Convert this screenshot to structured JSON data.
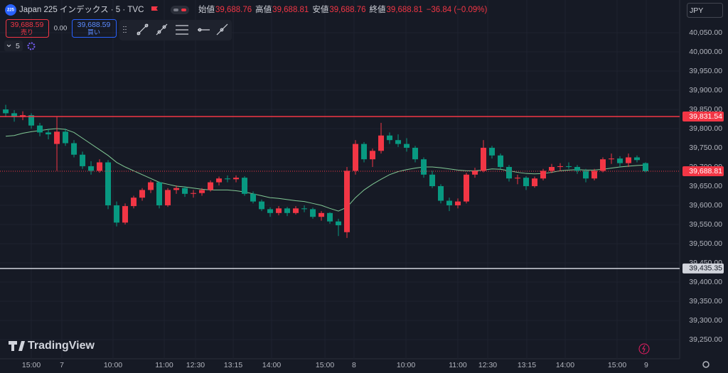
{
  "header": {
    "icon": "225",
    "symbol": "Japan 225 インデックス · 5 · TVC",
    "ohlc": [
      {
        "label": "始値",
        "value": "39,688.76"
      },
      {
        "label": "高値",
        "value": "39,688.81"
      },
      {
        "label": "安値",
        "value": "39,688.76"
      },
      {
        "label": "終値",
        "value": "39,688.81"
      }
    ],
    "change": "−36.84 (−0.09%)"
  },
  "trade": {
    "sell_price": "39,688.59",
    "sell_label": "売り",
    "spread": "0.00",
    "buy_price": "39,688.59",
    "buy_label": "買い"
  },
  "interval": "5",
  "currency": "JPY",
  "brand": "TradingView",
  "chart_data": {
    "type": "candlestick",
    "up_color": "#f23645",
    "down_color": "#089981",
    "grid": true,
    "ylim": [
      39200,
      40135.2
    ],
    "xlim": [
      -0.67,
      79
    ],
    "yticks": [
      {
        "value": 40050,
        "label": "40,050.00"
      },
      {
        "value": 40000,
        "label": "40,000.00"
      },
      {
        "value": 39950,
        "label": "39,950.00"
      },
      {
        "value": 39900,
        "label": "39,900.00"
      },
      {
        "value": 39850,
        "label": "39,850.00"
      },
      {
        "value": 39800,
        "label": "39,800.00"
      },
      {
        "value": 39750,
        "label": "39,750.00"
      },
      {
        "value": 39700,
        "label": "39,700.00"
      },
      {
        "value": 39650,
        "label": "39,650.00"
      },
      {
        "value": 39600,
        "label": "39,600.00"
      },
      {
        "value": 39550,
        "label": "39,550.00"
      },
      {
        "value": 39500,
        "label": "39,500.00"
      },
      {
        "value": 39450,
        "label": "39,450.00"
      },
      {
        "value": 39400,
        "label": "39,400.00"
      },
      {
        "value": 39350,
        "label": "39,350.00"
      },
      {
        "value": 39300,
        "label": "39,300.00"
      },
      {
        "value": 39250,
        "label": "39,250.00"
      }
    ],
    "xticks": [
      {
        "value": 3,
        "label": "15:00"
      },
      {
        "value": 6.58,
        "label": "7"
      },
      {
        "value": 12.58,
        "label": "10:00"
      },
      {
        "value": 18.58,
        "label": "11:00"
      },
      {
        "value": 22.25,
        "label": "12:30"
      },
      {
        "value": 26.67,
        "label": "13:15"
      },
      {
        "value": 31.17,
        "label": "14:00"
      },
      {
        "value": 37.42,
        "label": "15:00"
      },
      {
        "value": 40.83,
        "label": "8"
      },
      {
        "value": 46.92,
        "label": "10:00"
      },
      {
        "value": 53,
        "label": "11:00"
      },
      {
        "value": 56.5,
        "label": "12:30"
      },
      {
        "value": 61.08,
        "label": "13:15"
      },
      {
        "value": 65.58,
        "label": "14:00"
      },
      {
        "value": 71.67,
        "label": "15:00"
      },
      {
        "value": 75.08,
        "label": "9"
      }
    ],
    "hlines": [
      {
        "value": 39831.54,
        "label": "39,831.54",
        "color": "#f23645",
        "style": "solid"
      },
      {
        "value": 39688.81,
        "label": "39,688.81",
        "color": "#f23645",
        "style": "dotted"
      },
      {
        "value": 39435.35,
        "label": "39,435.35",
        "color": "#d1d4dc",
        "style": "solid"
      }
    ],
    "ohlc": [
      [
        39850,
        39862,
        39830,
        39840
      ],
      [
        39840,
        39848,
        39818,
        39830
      ],
      [
        39830,
        39845,
        39822,
        39835
      ],
      [
        39835,
        39840,
        39800,
        39808
      ],
      [
        39808,
        39815,
        39780,
        39790
      ],
      [
        39790,
        39800,
        39772,
        39785
      ],
      [
        39760,
        39832,
        39690,
        39792
      ],
      [
        39792,
        39800,
        39755,
        39762
      ],
      [
        39762,
        39770,
        39725,
        39732
      ],
      [
        39732,
        39740,
        39695,
        39702
      ],
      [
        39702,
        39715,
        39680,
        39690
      ],
      [
        39690,
        39720,
        39685,
        39712
      ],
      [
        39712,
        39718,
        39590,
        39600
      ],
      [
        39600,
        39610,
        39545,
        39555
      ],
      [
        39555,
        39605,
        39550,
        39598
      ],
      [
        39598,
        39625,
        39592,
        39620
      ],
      [
        39620,
        39645,
        39612,
        39640
      ],
      [
        39640,
        39665,
        39632,
        39660
      ],
      [
        39660,
        39662,
        39592,
        39600
      ],
      [
        39600,
        39645,
        39596,
        39640
      ],
      [
        39640,
        39652,
        39630,
        39645
      ],
      [
        39645,
        39650,
        39622,
        39630
      ],
      [
        39630,
        39640,
        39620,
        39632
      ],
      [
        39632,
        39645,
        39625,
        39640
      ],
      [
        39640,
        39665,
        39636,
        39660
      ],
      [
        39660,
        39675,
        39652,
        39670
      ],
      [
        39670,
        39678,
        39660,
        39668
      ],
      [
        39668,
        39678,
        39660,
        39672
      ],
      [
        39672,
        39676,
        39625,
        39630
      ],
      [
        39630,
        39636,
        39605,
        39610
      ],
      [
        39610,
        39615,
        39585,
        39590
      ],
      [
        39590,
        39595,
        39570,
        39580
      ],
      [
        39580,
        39598,
        39574,
        39592
      ],
      [
        39592,
        39596,
        39572,
        39580
      ],
      [
        39580,
        39598,
        39576,
        39592
      ],
      [
        39592,
        39600,
        39582,
        39590
      ],
      [
        39590,
        39594,
        39565,
        39570
      ],
      [
        39570,
        39585,
        39560,
        39580
      ],
      [
        39580,
        39582,
        39552,
        39558
      ],
      [
        39558,
        39565,
        39520,
        39548
      ],
      [
        39530,
        39700,
        39515,
        39690
      ],
      [
        39690,
        39770,
        39680,
        39760
      ],
      [
        39760,
        39765,
        39712,
        39720
      ],
      [
        39720,
        39748,
        39700,
        39742
      ],
      [
        39742,
        39815,
        39735,
        39782
      ],
      [
        39782,
        39790,
        39760,
        39770
      ],
      [
        39770,
        39785,
        39752,
        39760
      ],
      [
        39760,
        39775,
        39740,
        39750
      ],
      [
        39750,
        39755,
        39712,
        39720
      ],
      [
        39720,
        39725,
        39672,
        39680
      ],
      [
        39680,
        39690,
        39645,
        39650
      ],
      [
        39650,
        39655,
        39605,
        39612
      ],
      [
        39612,
        39620,
        39585,
        39600
      ],
      [
        39600,
        39618,
        39592,
        39610
      ],
      [
        39610,
        39685,
        39605,
        39680
      ],
      [
        39680,
        39698,
        39672,
        39690
      ],
      [
        39690,
        39770,
        39686,
        39750
      ],
      [
        39750,
        39755,
        39722,
        39730
      ],
      [
        39730,
        39735,
        39695,
        39700
      ],
      [
        39700,
        39705,
        39662,
        39670
      ],
      [
        39670,
        39680,
        39655,
        39672
      ],
      [
        39672,
        39676,
        39640,
        39650
      ],
      [
        39650,
        39675,
        39646,
        39670
      ],
      [
        39670,
        39695,
        39665,
        39690
      ],
      [
        39690,
        39708,
        39684,
        39700
      ],
      [
        39700,
        39710,
        39690,
        39702
      ],
      [
        39702,
        39712,
        39695,
        39700
      ],
      [
        39700,
        39705,
        39682,
        39690
      ],
      [
        39690,
        39695,
        39660,
        39670
      ],
      [
        39670,
        39695,
        39665,
        39690
      ],
      [
        39690,
        39725,
        39686,
        39720
      ],
      [
        39720,
        39735,
        39708,
        39722
      ],
      [
        39722,
        39728,
        39700,
        39710
      ],
      [
        39710,
        39735,
        39700,
        39725
      ],
      [
        39725,
        39730,
        39712,
        39718
      ],
      [
        39710,
        39712,
        39686,
        39689
      ]
    ],
    "ma": {
      "color": "#81c995",
      "values": [
        39780,
        39782,
        39788,
        39792,
        39795,
        39798,
        39800,
        39798,
        39790,
        39775,
        39760,
        39745,
        39730,
        39712,
        39700,
        39690,
        39680,
        39670,
        39660,
        39655,
        39650,
        39648,
        39645,
        39642,
        39640,
        39640,
        39640,
        39638,
        39635,
        39630,
        39625,
        39620,
        39618,
        39615,
        39612,
        39610,
        39605,
        39600,
        39592,
        39585,
        39595,
        39620,
        39640,
        39655,
        39668,
        39680,
        39688,
        39693,
        39697,
        39700,
        39700,
        39698,
        39695,
        39692,
        39690,
        39690,
        39692,
        39695,
        39694,
        39690,
        39686,
        39683,
        39682,
        39683,
        39686,
        39690,
        39692,
        39693,
        39692,
        39692,
        39694,
        39697,
        39700,
        39702,
        39704,
        39705
      ]
    }
  }
}
